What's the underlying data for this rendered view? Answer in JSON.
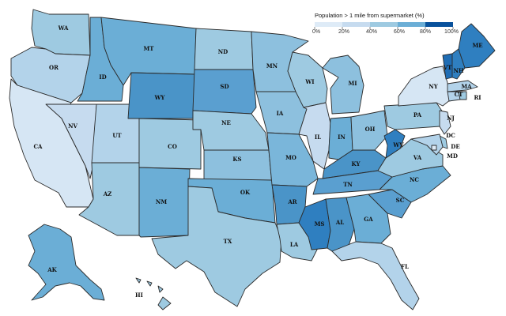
{
  "legend": {
    "title": "Population > 1 mile from supermarket (%)",
    "ticks": [
      "0%",
      "20%",
      "40%",
      "60%",
      "80%",
      "100%"
    ],
    "colors": [
      "#deebf7",
      "#c6dbef",
      "#9ecae1",
      "#6baed6",
      "#3182bd",
      "#08519c"
    ]
  },
  "states": [
    {
      "code": "WA",
      "color": "#9ecae1"
    },
    {
      "code": "OR",
      "color": "#b3d3ea"
    },
    {
      "code": "CA",
      "color": "#d6e6f4"
    },
    {
      "code": "ID",
      "color": "#6baed6"
    },
    {
      "code": "NV",
      "color": "#c6dbef"
    },
    {
      "code": "UT",
      "color": "#b3d3ea"
    },
    {
      "code": "AZ",
      "color": "#9ecae1"
    },
    {
      "code": "MT",
      "color": "#6baed6"
    },
    {
      "code": "WY",
      "color": "#4a94c8"
    },
    {
      "code": "CO",
      "color": "#9ecae1"
    },
    {
      "code": "NM",
      "color": "#6baed6"
    },
    {
      "code": "ND",
      "color": "#9ecae1"
    },
    {
      "code": "SD",
      "color": "#5a9fd0"
    },
    {
      "code": "NE",
      "color": "#9ecae1"
    },
    {
      "code": "KS",
      "color": "#8dc0de"
    },
    {
      "code": "OK",
      "color": "#6baed6"
    },
    {
      "code": "TX",
      "color": "#9ecae1"
    },
    {
      "code": "MN",
      "color": "#8dc0de"
    },
    {
      "code": "IA",
      "color": "#8dc0de"
    },
    {
      "code": "MO",
      "color": "#7ab6da"
    },
    {
      "code": "AR",
      "color": "#4a94c8"
    },
    {
      "code": "LA",
      "color": "#9ecae1"
    },
    {
      "code": "WI",
      "color": "#9ecae1"
    },
    {
      "code": "IL",
      "color": "#c6dbef"
    },
    {
      "code": "MI",
      "color": "#8dc0de"
    },
    {
      "code": "IN",
      "color": "#6baed6"
    },
    {
      "code": "OH",
      "color": "#8dc0de"
    },
    {
      "code": "KY",
      "color": "#4a94c8"
    },
    {
      "code": "TN",
      "color": "#5a9fd0"
    },
    {
      "code": "MS",
      "color": "#2f7fc0"
    },
    {
      "code": "AL",
      "color": "#4a94c8"
    },
    {
      "code": "GA",
      "color": "#6baed6"
    },
    {
      "code": "FL",
      "color": "#b3d3ea"
    },
    {
      "code": "SC",
      "color": "#5a9fd0"
    },
    {
      "code": "NC",
      "color": "#6baed6"
    },
    {
      "code": "VA",
      "color": "#9ecae1"
    },
    {
      "code": "WV",
      "color": "#2f7fc0"
    },
    {
      "code": "PA",
      "color": "#9ecae1"
    },
    {
      "code": "NY",
      "color": "#d6e6f4"
    },
    {
      "code": "VT",
      "color": "#1f6db4"
    },
    {
      "code": "NH",
      "color": "#2f7fc0"
    },
    {
      "code": "ME",
      "color": "#2f7fc0"
    },
    {
      "code": "MA",
      "color": "#b3d3ea"
    },
    {
      "code": "CT",
      "color": "#b3d3ea"
    },
    {
      "code": "RI",
      "color": "#9ecae1"
    },
    {
      "code": "NJ",
      "color": "#c6dbef"
    },
    {
      "code": "DE",
      "color": "#9ecae1"
    },
    {
      "code": "MD",
      "color": "#b3d3ea"
    },
    {
      "code": "DC",
      "color": "#deebf7"
    },
    {
      "code": "AK",
      "color": "#6baed6"
    },
    {
      "code": "HI",
      "color": "#9ecae1"
    }
  ]
}
